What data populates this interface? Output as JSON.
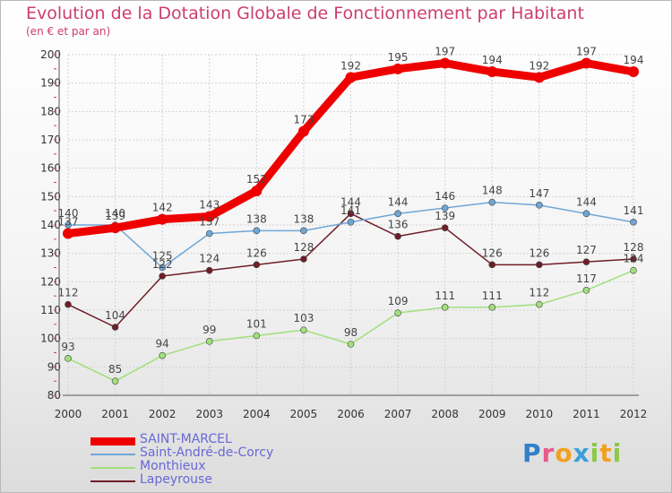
{
  "chart_data": {
    "type": "line",
    "title": "Evolution de la Dotation Globale de Fonctionnement par Habitant",
    "subtitle": "(en € et par an)",
    "xlabel": "",
    "ylabel": "",
    "ylim": [
      80,
      200
    ],
    "yticks": [
      80,
      90,
      100,
      110,
      120,
      130,
      140,
      150,
      160,
      170,
      180,
      190,
      200
    ],
    "categories": [
      "2000",
      "2001",
      "2002",
      "2003",
      "2004",
      "2005",
      "2006",
      "2007",
      "2008",
      "2009",
      "2010",
      "2011",
      "2012"
    ],
    "grid": true,
    "legend_position": "bottom-left",
    "series": [
      {
        "name": "Lapeyrouse",
        "color": "#6e1e28",
        "values": [
          112,
          104,
          122,
          124,
          126,
          128,
          144,
          136,
          139,
          126,
          126,
          127,
          128
        ]
      },
      {
        "name": "Monthieux",
        "color": "#a0e07a",
        "values": [
          93,
          85,
          94,
          99,
          101,
          103,
          98,
          109,
          111,
          111,
          112,
          117,
          124
        ]
      },
      {
        "name": "Saint-André-de-Corcy",
        "color": "#6fa6d6",
        "values": [
          140,
          140,
          125,
          137,
          138,
          138,
          141,
          144,
          146,
          148,
          147,
          144,
          141
        ]
      },
      {
        "name": "SAINT-MARCEL",
        "color": "#ee0000",
        "values": [
          137,
          139,
          142,
          143,
          152,
          173,
          192,
          195,
          197,
          194,
          192,
          197,
          194
        ]
      }
    ]
  },
  "legend": {
    "items": [
      {
        "label": "SAINT-MARCEL",
        "color": "#ee0000"
      },
      {
        "label": "Saint-André-de-Corcy",
        "color": "#6fa6d6"
      },
      {
        "label": "Monthieux",
        "color": "#a0e07a"
      },
      {
        "label": "Lapeyrouse",
        "color": "#6e1e28"
      }
    ]
  },
  "logo": {
    "text": "Proxiti",
    "letters": [
      {
        "ch": "P",
        "color": "#2f80c8"
      },
      {
        "ch": "r",
        "color": "#e85a8a"
      },
      {
        "ch": "o",
        "color": "#f0a020"
      },
      {
        "ch": "x",
        "color": "#3aa0d8"
      },
      {
        "ch": "i",
        "color": "#8cc84a"
      },
      {
        "ch": "t",
        "color": "#f0a020"
      },
      {
        "ch": "i",
        "color": "#8cc84a"
      }
    ]
  }
}
